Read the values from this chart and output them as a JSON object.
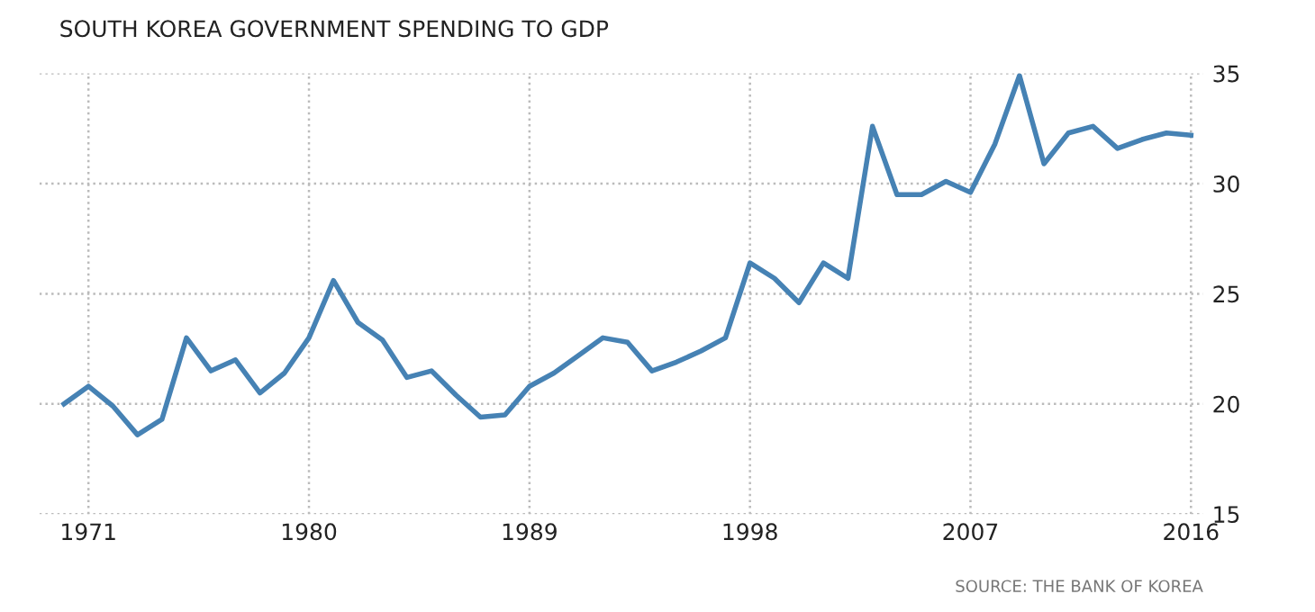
{
  "chart_data": {
    "type": "line",
    "title": "SOUTH KOREA GOVERNMENT SPENDING TO GDP",
    "x": [
      1970,
      1971,
      1972,
      1973,
      1974,
      1975,
      1976,
      1977,
      1978,
      1979,
      1980,
      1981,
      1982,
      1983,
      1984,
      1985,
      1986,
      1987,
      1988,
      1989,
      1990,
      1991,
      1992,
      1993,
      1994,
      1995,
      1996,
      1997,
      1998,
      1999,
      2000,
      2001,
      2002,
      2003,
      2004,
      2005,
      2006,
      2007,
      2008,
      2009,
      2010,
      2011,
      2012,
      2013,
      2014,
      2015,
      2016
    ],
    "series": [
      {
        "color": "#4682b4",
        "values": [
          20.0,
          20.8,
          19.9,
          18.6,
          19.3,
          23.0,
          21.5,
          22.0,
          20.5,
          21.4,
          23.0,
          25.6,
          23.7,
          22.9,
          21.2,
          21.5,
          20.4,
          19.4,
          19.5,
          20.8,
          21.4,
          22.2,
          23.0,
          22.8,
          21.5,
          21.9,
          22.4,
          23.0,
          26.4,
          25.7,
          24.6,
          26.4,
          25.7,
          32.6,
          29.5,
          29.5,
          30.1,
          29.6,
          31.8,
          34.9,
          30.9,
          32.3,
          32.6,
          31.6,
          32.0,
          32.3,
          32.2
        ]
      }
    ],
    "xlim": [
      1969,
      2016.5
    ],
    "xticks": [
      1971,
      1980,
      1989,
      1998,
      2007,
      2016
    ],
    "ylim": [
      15,
      35
    ],
    "yticks": [
      15,
      20,
      25,
      30,
      35
    ],
    "grid": true,
    "legend": false,
    "marker": "none",
    "line_style": "solid",
    "annotations": [
      "SOURCE: THE BANK OF KOREA"
    ]
  }
}
